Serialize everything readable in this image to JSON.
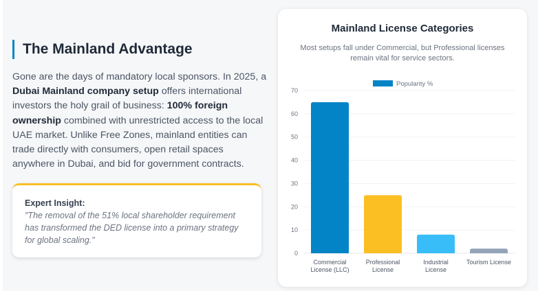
{
  "section": {
    "title": "The Mainland Advantage",
    "paragraph": [
      {
        "t": "Gone are the days of mandatory local sponsors. In 2025, a ",
        "b": false
      },
      {
        "t": "Dubai Mainland company setup",
        "b": true
      },
      {
        "t": " offers international investors the holy grail of business: ",
        "b": false
      },
      {
        "t": "100% foreign ownership",
        "b": true
      },
      {
        "t": " combined with unrestricted access to the local UAE market. Unlike Free Zones, mainland entities can trade directly with consumers, open retail spaces anywhere in Dubai, and bid for government contracts.",
        "b": false
      }
    ]
  },
  "insight": {
    "heading": "Expert Insight:",
    "quote": "\"The removal of the 51% local shareholder requirement has transformed the DED license into a primary strategy for global scaling.\""
  },
  "chart_data": {
    "type": "bar",
    "title": "Mainland License Categories",
    "subtitle": "Most setups fall under Commercial, but Professional licenses remain vital for service sectors.",
    "categories": [
      [
        "Commercial",
        "License (LLC)"
      ],
      [
        "Professional",
        "License"
      ],
      [
        "Industrial",
        "License"
      ],
      [
        "Tourism License"
      ]
    ],
    "series": [
      {
        "name": "Popularity %",
        "values": [
          65,
          25,
          8,
          2
        ]
      }
    ],
    "colors": [
      "#0284c7",
      "#fbbf24",
      "#38bdf8",
      "#94a3b8"
    ],
    "ylim": [
      0,
      70
    ],
    "yticks": [
      0,
      10,
      20,
      30,
      40,
      50,
      60,
      70
    ],
    "grid": true,
    "legend": "top"
  }
}
